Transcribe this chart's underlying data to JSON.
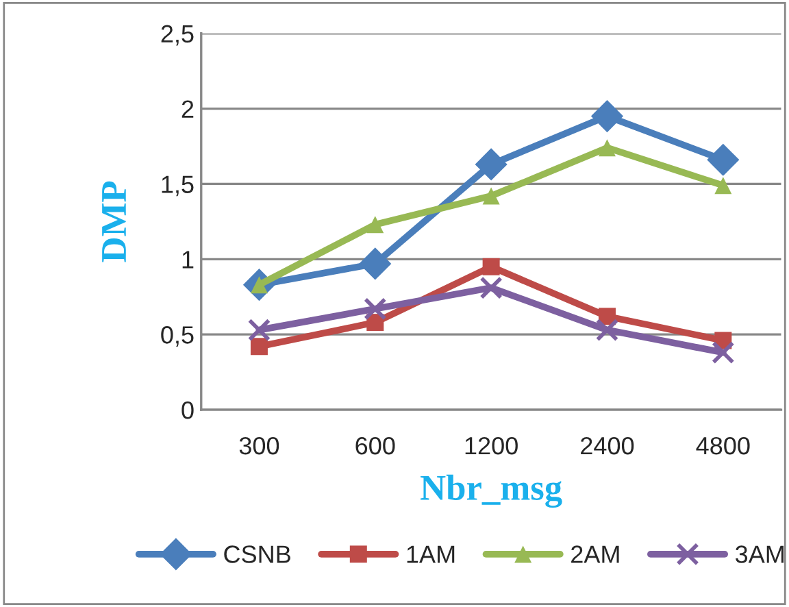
{
  "chart_data": {
    "type": "line",
    "xlabel": "Nbr_msg",
    "ylabel": "DMP",
    "categories": [
      "300",
      "600",
      "1200",
      "2400",
      "4800"
    ],
    "series": [
      {
        "name": "CSNB",
        "color": "#4a7ebb",
        "marker": "diamond",
        "values": [
          0.83,
          0.97,
          1.63,
          1.95,
          1.66
        ]
      },
      {
        "name": "1AM",
        "color": "#be4b48",
        "marker": "square",
        "values": [
          0.42,
          0.58,
          0.95,
          0.62,
          0.46
        ]
      },
      {
        "name": "2AM",
        "color": "#98b954",
        "marker": "triangle",
        "values": [
          0.83,
          1.23,
          1.42,
          1.74,
          1.49
        ]
      },
      {
        "name": "3AM",
        "color": "#7d60a0",
        "marker": "cross",
        "values": [
          0.53,
          0.67,
          0.81,
          0.53,
          0.38
        ]
      }
    ],
    "ylim": [
      0,
      2.5
    ],
    "yticks": [
      {
        "value": 0,
        "label": "0"
      },
      {
        "value": 0.5,
        "label": "0,5"
      },
      {
        "value": 1,
        "label": "1"
      },
      {
        "value": 1.5,
        "label": "1,5"
      },
      {
        "value": 2,
        "label": "2"
      },
      {
        "value": 2.5,
        "label": "2,5"
      }
    ],
    "grid": "y",
    "legend": "bottom"
  }
}
